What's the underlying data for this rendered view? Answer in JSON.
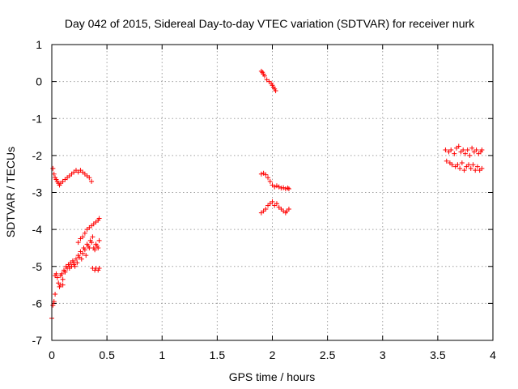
{
  "chart_data": {
    "type": "scatter",
    "title": "Day 042 of 2015, Sidereal Day-to-day VTEC variation (SDTVAR) for receiver nurk",
    "xlabel": "GPS time / hours",
    "ylabel": "SDTVAR / TECUs",
    "xlim": [
      0,
      4
    ],
    "ylim": [
      -7,
      1
    ],
    "xticks": [
      0,
      0.5,
      1,
      1.5,
      2,
      2.5,
      3,
      3.5,
      4
    ],
    "xtick_labels": [
      "0",
      "0.5",
      "1",
      "1.5",
      "2",
      "2.5",
      "3",
      "3.5",
      "4"
    ],
    "yticks": [
      1,
      0,
      -1,
      -2,
      -3,
      -4,
      -5,
      -6,
      -7
    ],
    "ytick_labels": [
      "1",
      "0",
      "-1",
      "-2",
      "-3",
      "-4",
      "-5",
      "-6",
      "-7"
    ],
    "grid": true,
    "marker": "+",
    "marker_color": "#ff0000",
    "series": [
      {
        "name": "SDTVAR",
        "points": [
          [
            0.01,
            -2.35
          ],
          [
            0.02,
            -2.5
          ],
          [
            0.03,
            -2.6
          ],
          [
            0.04,
            -2.65
          ],
          [
            0.05,
            -2.7
          ],
          [
            0.06,
            -2.75
          ],
          [
            0.07,
            -2.8
          ],
          [
            0.08,
            -2.75
          ],
          [
            0.1,
            -2.7
          ],
          [
            0.12,
            -2.65
          ],
          [
            0.14,
            -2.6
          ],
          [
            0.16,
            -2.55
          ],
          [
            0.18,
            -2.5
          ],
          [
            0.2,
            -2.45
          ],
          [
            0.22,
            -2.4
          ],
          [
            0.24,
            -2.45
          ],
          [
            0.26,
            -2.4
          ],
          [
            0.28,
            -2.45
          ],
          [
            0.3,
            -2.5
          ],
          [
            0.32,
            -2.55
          ],
          [
            0.34,
            -2.6
          ],
          [
            0.36,
            -2.7
          ],
          [
            0.0,
            -6.4
          ],
          [
            0.01,
            -6.05
          ],
          [
            0.02,
            -5.95
          ],
          [
            0.03,
            -5.75
          ],
          [
            0.03,
            -5.25
          ],
          [
            0.04,
            -5.2
          ],
          [
            0.05,
            -5.3
          ],
          [
            0.06,
            -5.45
          ],
          [
            0.07,
            -5.55
          ],
          [
            0.08,
            -5.5
          ],
          [
            0.09,
            -5.2
          ],
          [
            0.1,
            -5.35
          ],
          [
            0.1,
            -5.5
          ],
          [
            0.11,
            -5.1
          ],
          [
            0.12,
            -5.15
          ],
          [
            0.13,
            -5.0
          ],
          [
            0.14,
            -5.05
          ],
          [
            0.15,
            -4.95
          ],
          [
            0.16,
            -5.0
          ],
          [
            0.17,
            -4.9
          ],
          [
            0.18,
            -5.0
          ],
          [
            0.19,
            -4.85
          ],
          [
            0.2,
            -4.9
          ],
          [
            0.21,
            -5.0
          ],
          [
            0.22,
            -4.8
          ],
          [
            0.23,
            -4.9
          ],
          [
            0.24,
            -4.7
          ],
          [
            0.25,
            -4.75
          ],
          [
            0.26,
            -4.6
          ],
          [
            0.27,
            -4.8
          ],
          [
            0.28,
            -4.65
          ],
          [
            0.29,
            -4.5
          ],
          [
            0.3,
            -4.55
          ],
          [
            0.31,
            -4.7
          ],
          [
            0.32,
            -4.4
          ],
          [
            0.33,
            -4.45
          ],
          [
            0.34,
            -4.5
          ],
          [
            0.35,
            -4.3
          ],
          [
            0.36,
            -4.35
          ],
          [
            0.37,
            -4.2
          ],
          [
            0.38,
            -4.5
          ],
          [
            0.39,
            -4.55
          ],
          [
            0.4,
            -4.4
          ],
          [
            0.41,
            -4.45
          ],
          [
            0.42,
            -4.5
          ],
          [
            0.43,
            -4.3
          ],
          [
            0.08,
            -5.25
          ],
          [
            0.12,
            -5.15
          ],
          [
            0.16,
            -5.05
          ],
          [
            0.2,
            -4.95
          ],
          [
            0.24,
            -4.35
          ],
          [
            0.26,
            -4.25
          ],
          [
            0.28,
            -4.2
          ],
          [
            0.3,
            -4.1
          ],
          [
            0.32,
            -4.0
          ],
          [
            0.34,
            -3.95
          ],
          [
            0.36,
            -3.9
          ],
          [
            0.38,
            -3.85
          ],
          [
            0.4,
            -3.8
          ],
          [
            0.42,
            -3.75
          ],
          [
            0.43,
            -3.7
          ],
          [
            0.37,
            -5.05
          ],
          [
            0.39,
            -5.1
          ],
          [
            0.4,
            -5.05
          ],
          [
            0.42,
            -5.1
          ],
          [
            0.43,
            -5.05
          ],
          [
            1.9,
            0.28
          ],
          [
            1.91,
            0.25
          ],
          [
            1.92,
            0.2
          ],
          [
            1.93,
            0.15
          ],
          [
            1.95,
            0.05
          ],
          [
            1.97,
            0.0
          ],
          [
            1.99,
            -0.05
          ],
          [
            2.0,
            -0.1
          ],
          [
            2.01,
            -0.15
          ],
          [
            2.02,
            -0.2
          ],
          [
            2.03,
            -0.25
          ],
          [
            1.9,
            -2.5
          ],
          [
            1.92,
            -2.48
          ],
          [
            1.94,
            -2.52
          ],
          [
            1.96,
            -2.6
          ],
          [
            1.98,
            -2.7
          ],
          [
            2.0,
            -2.8
          ],
          [
            2.02,
            -2.85
          ],
          [
            2.04,
            -2.82
          ],
          [
            2.06,
            -2.85
          ],
          [
            2.08,
            -2.88
          ],
          [
            2.1,
            -2.87
          ],
          [
            2.12,
            -2.9
          ],
          [
            2.14,
            -2.88
          ],
          [
            2.15,
            -2.9
          ],
          [
            1.9,
            -3.55
          ],
          [
            1.92,
            -3.5
          ],
          [
            1.94,
            -3.45
          ],
          [
            1.96,
            -3.35
          ],
          [
            1.98,
            -3.3
          ],
          [
            2.0,
            -3.25
          ],
          [
            2.02,
            -3.35
          ],
          [
            2.04,
            -3.3
          ],
          [
            2.06,
            -3.4
          ],
          [
            2.08,
            -3.45
          ],
          [
            2.1,
            -3.5
          ],
          [
            2.12,
            -3.55
          ],
          [
            2.13,
            -3.5
          ],
          [
            2.15,
            -3.45
          ],
          [
            3.57,
            -1.85
          ],
          [
            3.58,
            -2.15
          ],
          [
            3.6,
            -1.9
          ],
          [
            3.61,
            -2.2
          ],
          [
            3.62,
            -1.85
          ],
          [
            3.63,
            -2.25
          ],
          [
            3.65,
            -1.95
          ],
          [
            3.66,
            -2.3
          ],
          [
            3.67,
            -1.8
          ],
          [
            3.68,
            -2.25
          ],
          [
            3.69,
            -1.75
          ],
          [
            3.7,
            -2.35
          ],
          [
            3.71,
            -1.9
          ],
          [
            3.72,
            -2.2
          ],
          [
            3.73,
            -1.85
          ],
          [
            3.74,
            -2.4
          ],
          [
            3.75,
            -1.95
          ],
          [
            3.76,
            -2.3
          ],
          [
            3.77,
            -1.85
          ],
          [
            3.78,
            -2.25
          ],
          [
            3.79,
            -2.0
          ],
          [
            3.8,
            -2.35
          ],
          [
            3.81,
            -1.8
          ],
          [
            3.82,
            -2.25
          ],
          [
            3.83,
            -1.9
          ],
          [
            3.84,
            -2.4
          ],
          [
            3.85,
            -1.85
          ],
          [
            3.86,
            -2.3
          ],
          [
            3.87,
            -1.95
          ],
          [
            3.88,
            -2.4
          ],
          [
            3.89,
            -1.9
          ],
          [
            3.9,
            -2.35
          ],
          [
            3.9,
            -1.85
          ]
        ]
      }
    ]
  }
}
